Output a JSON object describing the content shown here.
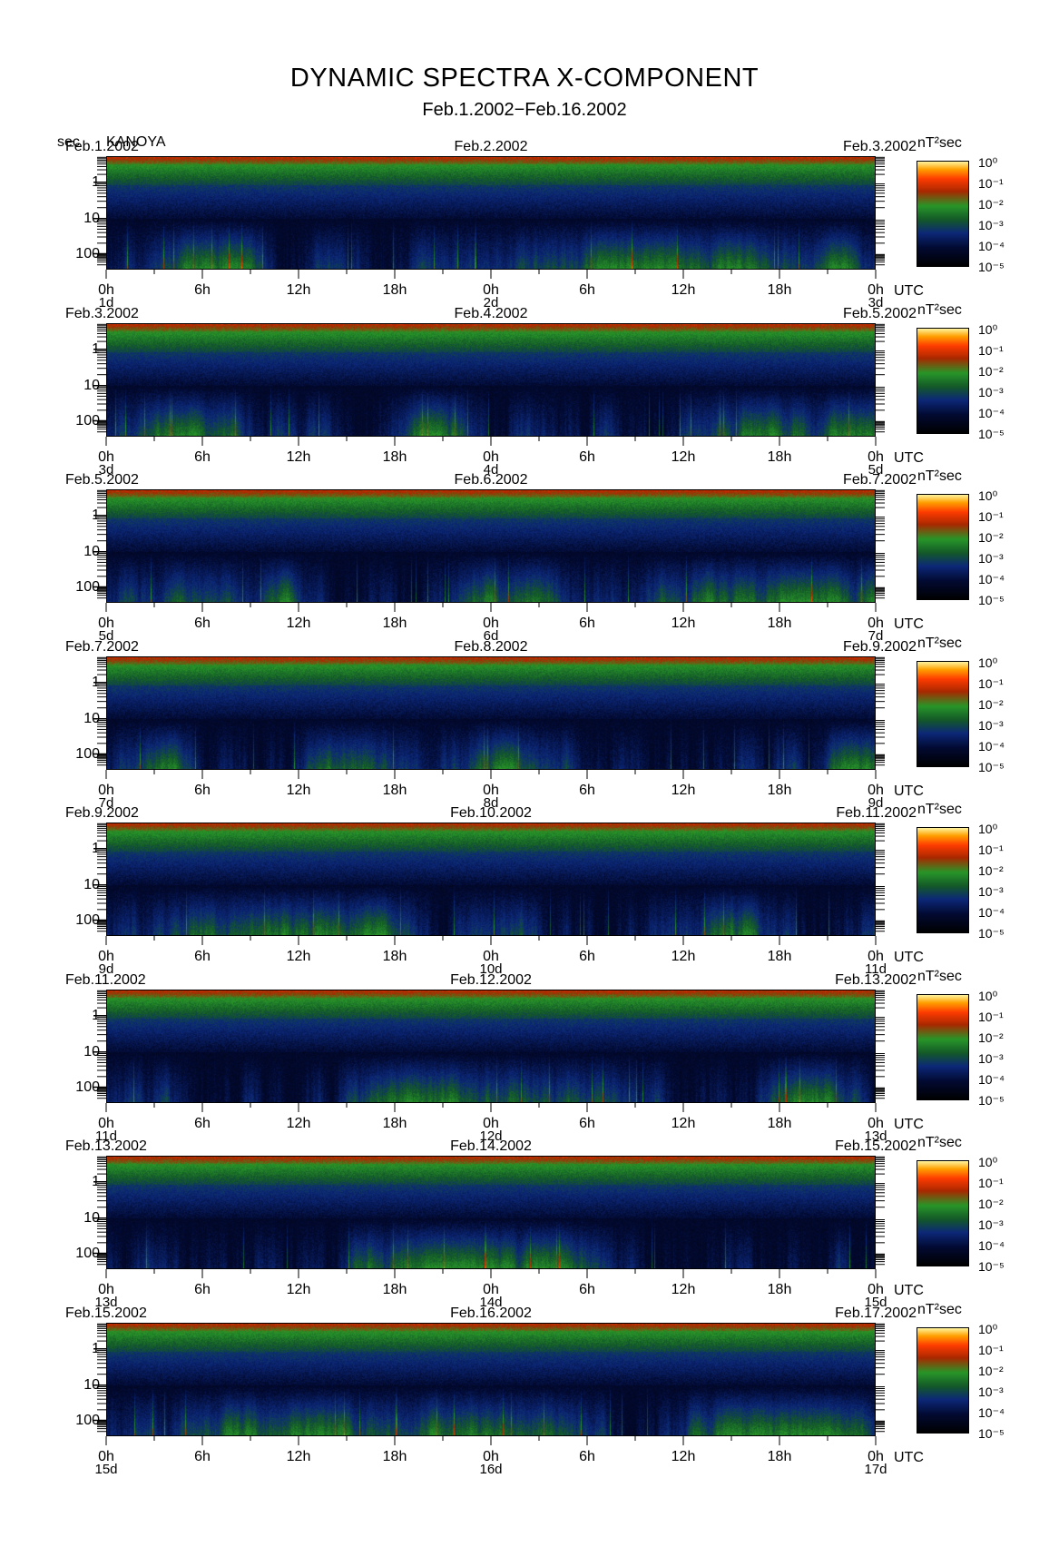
{
  "title": "DYNAMIC SPECTRA X-COMPONENT",
  "subtitle": "Feb.1.2002−Feb.16.2002",
  "header": {
    "y_unit": "sec",
    "station": "KANOYA"
  },
  "chart_data": {
    "type": "heatmap",
    "title": "DYNAMIC SPECTRA X-COMPONENT",
    "subtitle": "Feb.1.2002−Feb.16.2002",
    "station": "KANOYA",
    "ylabel": "sec",
    "y_scale": "log",
    "y_ticks": [
      "1",
      "10",
      "100"
    ],
    "x_ticks": [
      "0h",
      "6h",
      "12h",
      "18h",
      "0h",
      "6h",
      "12h",
      "18h",
      "0h"
    ],
    "x_unit": "UTC",
    "colorbar": {
      "unit": "nT²sec",
      "labels": [
        "10⁰",
        "10⁻¹",
        "10⁻²",
        "10⁻³",
        "10⁻⁴",
        "10⁻⁵"
      ],
      "colors": [
        "#000000",
        "#001a5c",
        "#0d3d8a",
        "#1a7a1a",
        "#2fa82f",
        "#b81e00",
        "#ff3a00",
        "#ff9900",
        "#ffcc33",
        "#fff2a0"
      ]
    },
    "panels": [
      {
        "date_left": "Feb.1.2002",
        "date_center": "Feb.2.2002",
        "date_right": "Feb.3.2002",
        "day_labels": [
          "1d",
          "2d",
          "3d"
        ]
      },
      {
        "date_left": "Feb.3.2002",
        "date_center": "Feb.4.2002",
        "date_right": "Feb.5.2002",
        "day_labels": [
          "3d",
          "4d",
          "5d"
        ]
      },
      {
        "date_left": "Feb.5.2002",
        "date_center": "Feb.6.2002",
        "date_right": "Feb.7.2002",
        "day_labels": [
          "5d",
          "6d",
          "7d"
        ]
      },
      {
        "date_left": "Feb.7.2002",
        "date_center": "Feb.8.2002",
        "date_right": "Feb.9.2002",
        "day_labels": [
          "7d",
          "8d",
          "9d"
        ]
      },
      {
        "date_left": "Feb.9.2002",
        "date_center": "Feb.10.2002",
        "date_right": "Feb.11.2002",
        "day_labels": [
          "9d",
          "10d",
          "11d"
        ]
      },
      {
        "date_left": "Feb.11.2002",
        "date_center": "Feb.12.2002",
        "date_right": "Feb.13.2002",
        "day_labels": [
          "11d",
          "12d",
          "13d"
        ]
      },
      {
        "date_left": "Feb.13.2002",
        "date_center": "Feb.14.2002",
        "date_right": "Feb.15.2002",
        "day_labels": [
          "13d",
          "14d",
          "15d"
        ]
      },
      {
        "date_left": "Feb.15.2002",
        "date_center": "Feb.16.2002",
        "date_right": "Feb.17.2002",
        "day_labels": [
          "15d",
          "16d",
          "17d"
        ]
      }
    ]
  }
}
